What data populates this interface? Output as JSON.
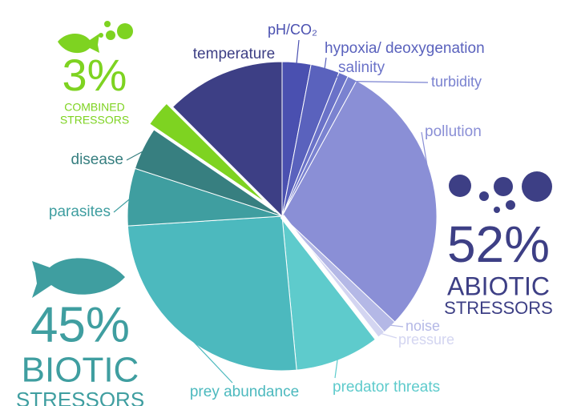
{
  "chart_data": {
    "type": "pie",
    "categories": [
      "pH/CO₂",
      "hypoxia/ deoxygenation",
      "salinity",
      "turbidity",
      "pollution",
      "noise",
      "pressure",
      "predator threats",
      "prey abundance",
      "parasites",
      "disease",
      null,
      "temperature"
    ],
    "values": [
      3,
      3,
      1,
      1,
      29,
      1.5,
      1,
      9,
      25.5,
      6,
      4.5,
      3,
      12.5
    ],
    "colors": [
      "#4a50b0",
      "#5a62bd",
      "#6a72c8",
      "#7a82d0",
      "#8a8fd6",
      "#b4b8e6",
      "#d3d5f1",
      "#5ecbcc",
      "#4cb9be",
      "#3f9ea0",
      "#377f80",
      "#7ed321",
      "#3d3f85"
    ],
    "groups": [
      {
        "value": 52,
        "value_label": "52%",
        "name": [
          "ABIOTIC",
          "STRESSORS"
        ],
        "color": "#3d3f85"
      },
      {
        "value": 45,
        "value_label": "45%",
        "name": [
          "BIOTIC",
          "STRESSORS"
        ],
        "color": "#3f9ea0"
      },
      {
        "value": 3,
        "value_label": "3%",
        "name": [
          "COMBINED",
          "STRESSORS"
        ],
        "color": "#7ed321"
      }
    ]
  }
}
